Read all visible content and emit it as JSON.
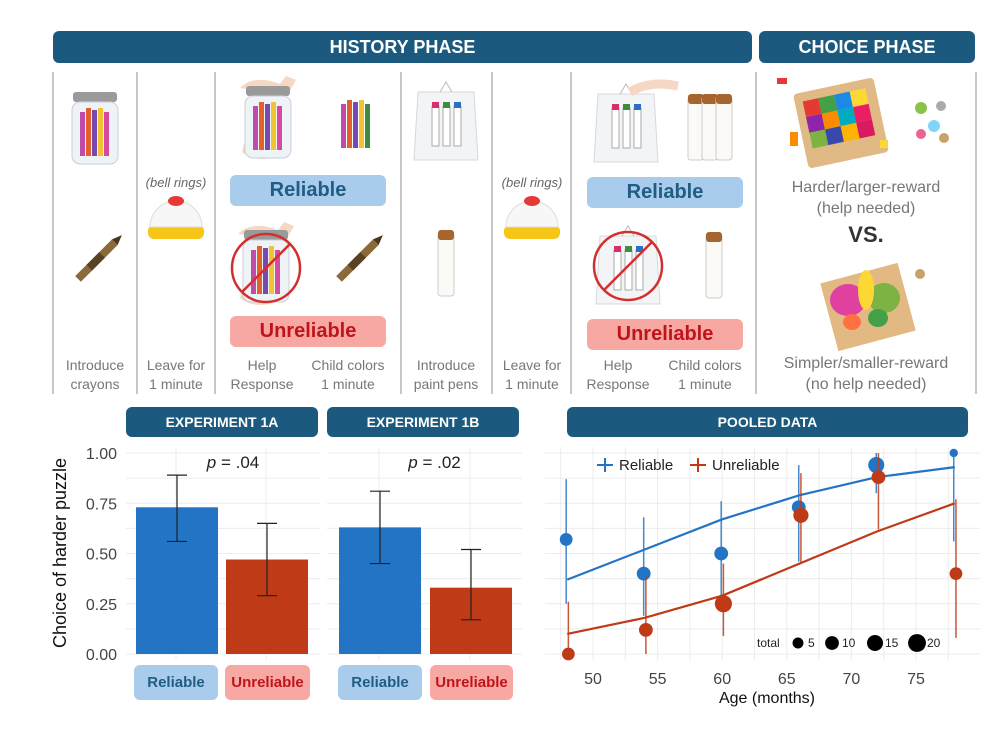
{
  "headers": {
    "history": "HISTORY PHASE",
    "choice": "CHOICE PHASE",
    "exp1a": "EXPERIMENT 1A",
    "exp1b": "EXPERIMENT 1B",
    "pooled": "POOLED DATA"
  },
  "history_steps": [
    {
      "caption_line1": "Introduce",
      "caption_line2": "crayons",
      "icons": [
        "crayon-jar-icon",
        "crayon-icon"
      ]
    },
    {
      "caption_line1": "Leave for",
      "caption_line2": "1 minute",
      "note": "(bell rings)",
      "icons": [
        "bell-icon"
      ]
    },
    {
      "caption_line1": "Help",
      "caption_line2": "Response",
      "icons": [
        "hands-opening-jar-icon",
        "prohibited-icon"
      ]
    },
    {
      "caption_line1": "Child colors",
      "caption_line2": "1 minute",
      "icons": [
        "crayons-bundle-icon",
        "crayon-icon"
      ]
    },
    {
      "caption_line1": "Introduce",
      "caption_line2": "paint pens",
      "icons": [
        "paint-pen-bag-icon",
        "paint-pen-icon"
      ]
    },
    {
      "caption_line1": "Leave for",
      "caption_line2": "1 minute",
      "note": "(bell rings)",
      "icons": [
        "bell-icon"
      ]
    },
    {
      "caption_line1": "Help",
      "caption_line2": "Response",
      "icons": [
        "hands-opening-bag-icon",
        "prohibited-icon"
      ]
    },
    {
      "caption_line1": "Child colors",
      "caption_line2": "1 minute",
      "icons": [
        "paint-pens-icon",
        "paint-pen-icon"
      ]
    }
  ],
  "conditions": {
    "reliable": "Reliable",
    "unreliable": "Unreliable"
  },
  "pen_label": "brown",
  "choice": {
    "harder_line1": "Harder/larger-reward",
    "harder_line2": "(help needed)",
    "vs": "VS.",
    "simpler_line1": "Simpler/smaller-reward",
    "simpler_line2": "(no help needed)"
  },
  "colors": {
    "header": "#1b5a7e",
    "reliable": "#2474c6",
    "unreliable": "#bf3a16",
    "reliable_label_bg": "#a9cbec",
    "unreliable_label_bg": "#f7a8a2"
  },
  "chart_data": [
    {
      "type": "bar",
      "title": "EXPERIMENT 1A",
      "ylabel": "Choice of harder puzzle",
      "ylim": [
        0,
        1
      ],
      "yticks": [
        "0.00",
        "0.25",
        "0.50",
        "0.75",
        "1.00"
      ],
      "categories": [
        "Reliable",
        "Unreliable"
      ],
      "values": [
        0.73,
        0.47
      ],
      "error_low": [
        0.56,
        0.29
      ],
      "error_high": [
        0.89,
        0.65
      ],
      "annotation": "p = .04",
      "grid": true
    },
    {
      "type": "bar",
      "title": "EXPERIMENT 1B",
      "ylim": [
        0,
        1
      ],
      "categories": [
        "Reliable",
        "Unreliable"
      ],
      "values": [
        0.63,
        0.33
      ],
      "error_low": [
        0.45,
        0.17
      ],
      "error_high": [
        0.81,
        0.52
      ],
      "annotation": "p = .02",
      "grid": true
    },
    {
      "type": "scatter",
      "title": "POOLED DATA",
      "xlabel": "Age (months)",
      "xlim": [
        47,
        79
      ],
      "ylim": [
        0,
        1
      ],
      "xticks": [
        50,
        55,
        60,
        65,
        70,
        75
      ],
      "grid": true,
      "legend_position": "top-left",
      "size_legend": {
        "title": "total",
        "values": [
          5,
          10,
          15,
          20
        ]
      },
      "series": [
        {
          "name": "Reliable",
          "x": [
            48,
            54,
            60,
            66,
            72,
            78
          ],
          "y": [
            0.57,
            0.4,
            0.5,
            0.73,
            0.94,
            1.0
          ],
          "ci_low": [
            0.25,
            0.19,
            0.28,
            0.46,
            0.8,
            0.56
          ],
          "ci_high": [
            0.87,
            0.68,
            0.76,
            0.94,
            1.0,
            1.0
          ],
          "total": [
            8,
            10,
            10,
            10,
            15,
            2
          ],
          "fit_x": [
            48,
            54,
            60,
            66,
            72,
            78
          ],
          "fit_y": [
            0.37,
            0.52,
            0.67,
            0.79,
            0.88,
            0.93
          ]
        },
        {
          "name": "Unreliable",
          "x": [
            48,
            54,
            60,
            66,
            72,
            78
          ],
          "y": [
            0.0,
            0.12,
            0.25,
            0.69,
            0.88,
            0.4
          ],
          "ci_low": [
            0.0,
            0.0,
            0.09,
            0.45,
            0.62,
            0.08
          ],
          "ci_high": [
            0.26,
            0.39,
            0.45,
            0.9,
            1.0,
            0.77
          ],
          "total": [
            8,
            10,
            18,
            13,
            10,
            8
          ],
          "fit_x": [
            48,
            54,
            60,
            66,
            72,
            78
          ],
          "fit_y": [
            0.1,
            0.18,
            0.29,
            0.45,
            0.61,
            0.75
          ]
        }
      ]
    }
  ]
}
